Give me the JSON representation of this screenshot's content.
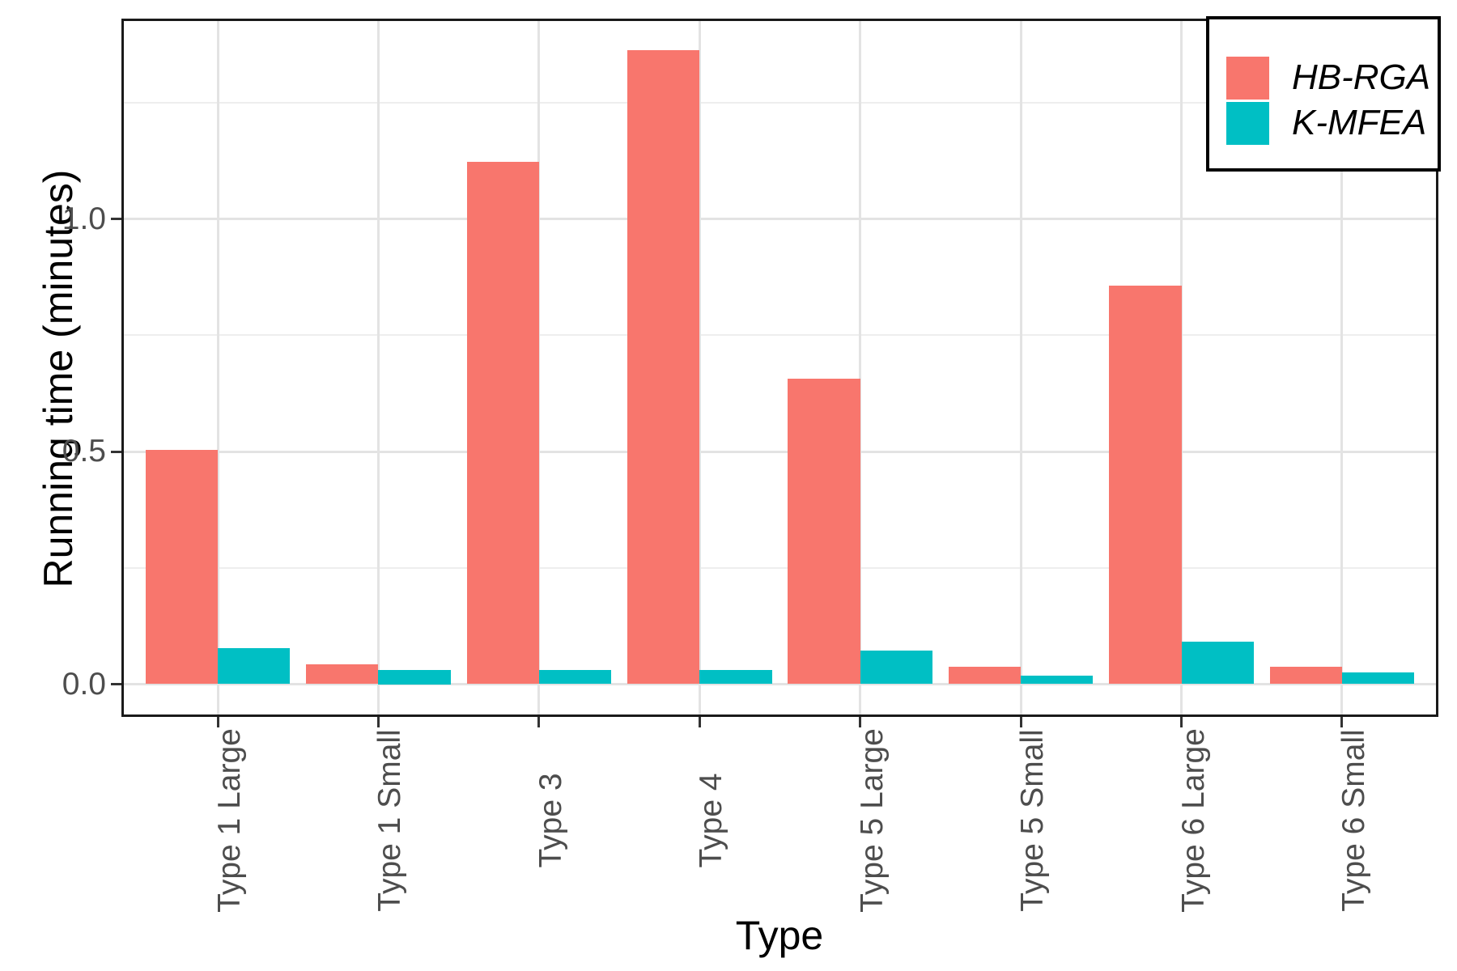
{
  "chart_data": {
    "type": "bar",
    "title": "",
    "xlabel": "Type",
    "ylabel": "Running time (minutes)",
    "categories": [
      "Type 1 Large",
      "Type 1 Small",
      "Type 3",
      "Type 4",
      "Type 5 Large",
      "Type 5 Small",
      "Type 6 Large",
      "Type 6 Small"
    ],
    "series": [
      {
        "name": "HB-RGA",
        "color": "#F8766D",
        "values": [
          0.503,
          0.043,
          1.123,
          1.362,
          0.657,
          0.038,
          0.857,
          0.038
        ]
      },
      {
        "name": "K-MFEA",
        "color": "#00BFC4",
        "values": [
          0.078,
          0.03,
          0.031,
          0.031,
          0.073,
          0.019,
          0.092,
          0.026
        ]
      }
    ],
    "y_ticks": [
      {
        "label": "0.0",
        "value": 0.0
      },
      {
        "label": "0.5",
        "value": 0.5
      },
      {
        "label": "1.0",
        "value": 1.0
      }
    ],
    "y_minor_gridlines": [
      0.25,
      0.75,
      1.25
    ],
    "ylim": [
      -0.069,
      1.43
    ],
    "grid": true,
    "legend_position": "top-right-inside",
    "legend_text_style": "italic",
    "bar_layout": "dodged",
    "colors": {
      "panel_background": "#ffffff",
      "panel_border": "#1a1a1a",
      "grid_major": "#e3e3e3",
      "grid_minor": "#eeeeee",
      "tick_mark": "#333333",
      "tick_label": "#4d4d4d",
      "axis_title": "#000000"
    }
  }
}
